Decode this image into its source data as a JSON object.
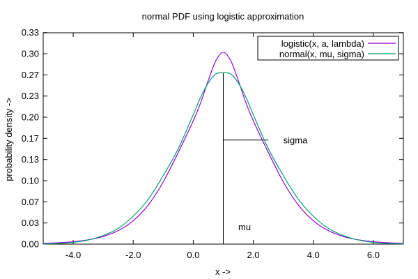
{
  "chart_data": {
    "type": "line",
    "title": "normal PDF using logistic approximation",
    "xlabel": "x ->",
    "ylabel": "probability density ->",
    "xlim": [
      -5,
      7
    ],
    "ylim": [
      0,
      0.333
    ],
    "grid": false,
    "legend_position": "top-right",
    "x_ticks": [
      {
        "value": -4,
        "label": "-4.0"
      },
      {
        "value": -2,
        "label": "-2.0"
      },
      {
        "value": 0,
        "label": "0.0"
      },
      {
        "value": 2,
        "label": "2.0"
      },
      {
        "value": 4,
        "label": "4.0"
      },
      {
        "value": 6,
        "label": "6.0"
      }
    ],
    "y_ticks": [
      {
        "value": 0.0,
        "label": "0.00"
      },
      {
        "value": 0.0333,
        "label": "0.03"
      },
      {
        "value": 0.0667,
        "label": "0.07"
      },
      {
        "value": 0.1,
        "label": "0.10"
      },
      {
        "value": 0.1333,
        "label": "0.13"
      },
      {
        "value": 0.1667,
        "label": "0.17"
      },
      {
        "value": 0.2,
        "label": "0.20"
      },
      {
        "value": 0.2333,
        "label": "0.23"
      },
      {
        "value": 0.2667,
        "label": "0.27"
      },
      {
        "value": 0.3,
        "label": "0.30"
      },
      {
        "value": 0.3333,
        "label": "0.33"
      }
    ],
    "series": [
      {
        "name": "logistic(x, a, lambda)",
        "color": "#9400d3",
        "x": [
          -5,
          -4.5,
          -4,
          -3.5,
          -3,
          -2.5,
          -2,
          -1.5,
          -1,
          -0.5,
          0,
          0.25,
          0.5,
          0.75,
          1,
          1.25,
          1.5,
          1.75,
          2,
          2.5,
          3,
          3.5,
          4,
          4.5,
          5,
          5.5,
          6,
          6.5,
          7
        ],
        "values": [
          0.0012,
          0.0021,
          0.0038,
          0.0068,
          0.0121,
          0.0213,
          0.0369,
          0.0617,
          0.0981,
          0.1446,
          0.1944,
          0.2233,
          0.2578,
          0.2889,
          0.3023,
          0.2889,
          0.2578,
          0.2233,
          0.1944,
          0.1446,
          0.0981,
          0.0617,
          0.0369,
          0.0213,
          0.0121,
          0.0068,
          0.0038,
          0.0021,
          0.0012
        ]
      },
      {
        "name": "normal(x, mu, sigma)",
        "color": "#009e73",
        "x": [
          -5,
          -4.5,
          -4,
          -3.5,
          -3,
          -2.5,
          -2,
          -1.5,
          -1,
          -0.5,
          0,
          0.25,
          0.5,
          0.75,
          1,
          1.25,
          1.5,
          1.75,
          2,
          2.5,
          3,
          3.5,
          4,
          4.5,
          5,
          5.5,
          6,
          6.5,
          7
        ],
        "values": [
          0.0003,
          0.001,
          0.0027,
          0.0065,
          0.0135,
          0.0248,
          0.0441,
          0.0707,
          0.108,
          0.1505,
          0.204,
          0.232,
          0.254,
          0.268,
          0.27,
          0.268,
          0.254,
          0.232,
          0.204,
          0.1505,
          0.108,
          0.0707,
          0.0441,
          0.0248,
          0.0135,
          0.0065,
          0.0027,
          0.001,
          0.0003
        ]
      }
    ],
    "annotations": [
      {
        "text": "sigma",
        "x": 3.0,
        "y": 0.164
      },
      {
        "text": "mu",
        "x": 1.5,
        "y": 0.027
      }
    ],
    "reference_lines": {
      "mu_line": {
        "x": 1,
        "y_from": 0,
        "y_to": 0.27
      },
      "sigma_line": {
        "y": 0.164,
        "x_from": 1,
        "x_to": 2.5
      }
    }
  }
}
